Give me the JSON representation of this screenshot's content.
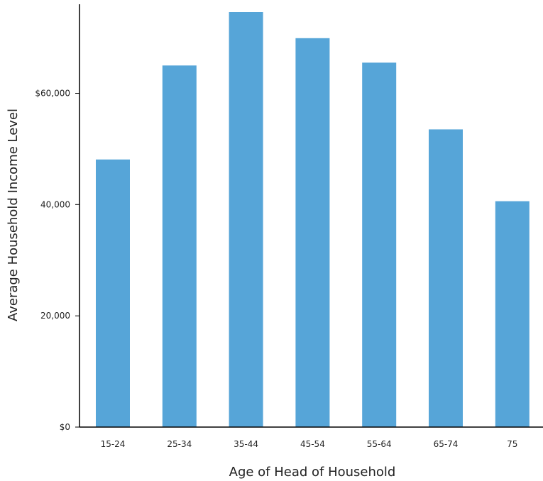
{
  "chart_data": {
    "type": "bar",
    "categories": [
      "15-24",
      "25-34",
      "35-44",
      "45-54",
      "55-64",
      "65-74",
      "75"
    ],
    "values": [
      48100,
      65000,
      74600,
      69900,
      65500,
      53500,
      40600
    ],
    "xlabel": "Age of Head of Household",
    "ylabel": "Average Household Income Level",
    "ylim": [
      0,
      76000
    ],
    "yticks": [
      0,
      20000,
      40000,
      60000
    ],
    "ytick_labels": [
      "$0",
      "20,000",
      "40,000",
      "$60,000"
    ],
    "bar_color": "#56a5d8",
    "grid": false,
    "legend": "none"
  }
}
